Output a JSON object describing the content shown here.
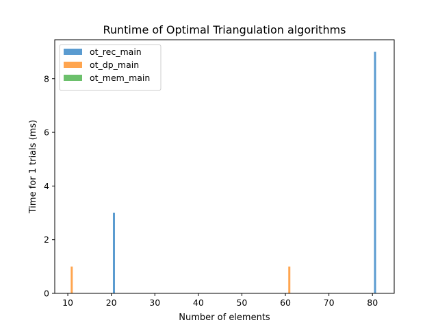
{
  "chart_data": {
    "type": "bar",
    "title": "Runtime of Optimal Triangulation algorithms",
    "xlabel": "Number of elements",
    "ylabel": "Time for 1 trials (ms)",
    "xlim": [
      7,
      85
    ],
    "ylim": [
      0,
      9.45
    ],
    "xticks": [
      10,
      20,
      30,
      40,
      50,
      60,
      70,
      80
    ],
    "yticks": [
      0,
      2,
      4,
      6,
      8
    ],
    "legend_position": "upper-left",
    "grid": false,
    "series": [
      {
        "name": "ot_rec_main",
        "color": "#5a9bd0",
        "x": [
          20,
          80
        ],
        "values": [
          3,
          9
        ]
      },
      {
        "name": "ot_dp_main",
        "color": "#ffa54f",
        "x": [
          10,
          60
        ],
        "values": [
          1,
          1
        ]
      },
      {
        "name": "ot_mem_main",
        "color": "#6cc06c",
        "x": [],
        "values": []
      }
    ]
  }
}
